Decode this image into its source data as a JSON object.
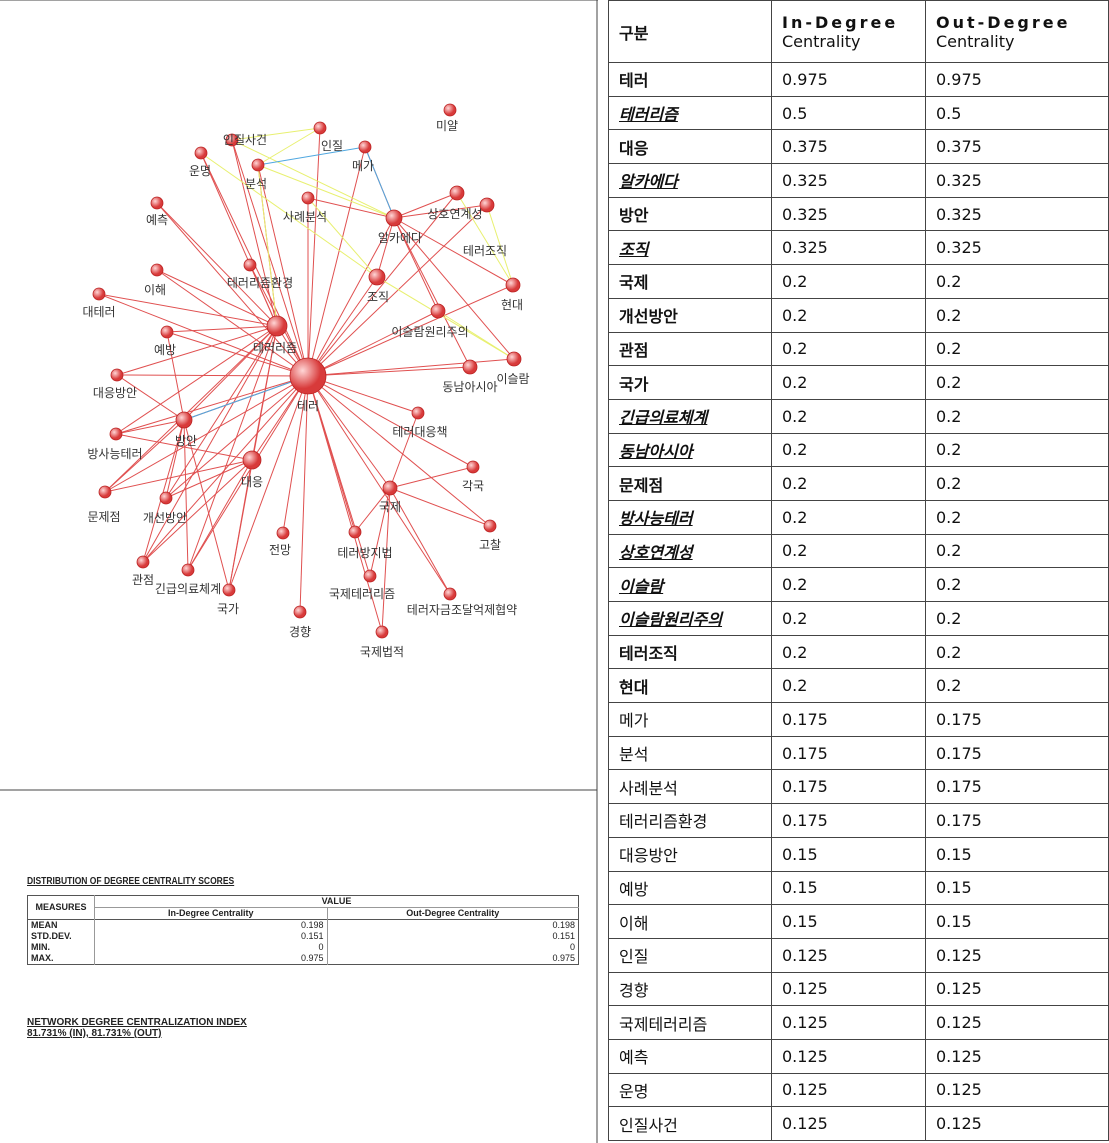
{
  "network": {
    "nodes": [
      "테러",
      "테러리즘",
      "미얄",
      "인질사건",
      "인질",
      "메가",
      "운명",
      "분석",
      "예측",
      "사례분석",
      "상호연계성",
      "알카에다",
      "테러조직",
      "현대",
      "이슬람원리주의",
      "이슬람",
      "동남아시아",
      "조직",
      "테러리즘환경",
      "이해",
      "대테러",
      "예방",
      "대응방안",
      "방안",
      "방사능테러",
      "대응",
      "테러대응책",
      "각국",
      "국제",
      "문제점",
      "개선방안",
      "고찰",
      "전망",
      "테러방지법",
      "관점",
      "긴급의료체계",
      "국가",
      "국제테러리즘",
      "테러자금조달억제협약",
      "경향",
      "국제법적"
    ]
  },
  "stats": {
    "title": "DISTRIBUTION OF DEGREE CENTRALITY SCORES",
    "measures_label": "MEASURES",
    "value_label": "VALUE",
    "columns": [
      "In-Degree Centrality",
      "Out-Degree Centrality"
    ],
    "rows": [
      {
        "name": "MEAN",
        "values": [
          0.198,
          0.198
        ]
      },
      {
        "name": "STD.DEV.",
        "values": [
          0.151,
          0.151
        ]
      },
      {
        "name": "MIN.",
        "values": [
          0,
          0
        ]
      },
      {
        "name": "MAX.",
        "values": [
          0.975,
          0.975
        ]
      }
    ],
    "index_title": "NETWORK DEGREE CENTRALIZATION INDEX",
    "index_value": "81.731% (IN), 81.731% (OUT)"
  },
  "table": {
    "header": [
      "구분",
      [
        "In-Degree",
        "Centrality"
      ],
      [
        "Out-Degree",
        "Centrality"
      ]
    ],
    "rows": [
      [
        "테러",
        0.975,
        0.975
      ],
      [
        "테러리즘",
        0.5,
        0.5
      ],
      [
        "대응",
        0.375,
        0.375
      ],
      [
        "알카에다",
        0.325,
        0.325
      ],
      [
        "방안",
        0.325,
        0.325
      ],
      [
        "조직",
        0.325,
        0.325
      ],
      [
        "국제",
        0.2,
        0.2
      ],
      [
        "개선방안",
        0.2,
        0.2
      ],
      [
        "관점",
        0.2,
        0.2
      ],
      [
        "국가",
        0.2,
        0.2
      ],
      [
        "긴급의료체계",
        0.2,
        0.2
      ],
      [
        "동남아시아",
        0.2,
        0.2
      ],
      [
        "문제점",
        0.2,
        0.2
      ],
      [
        "방사능테러",
        0.2,
        0.2
      ],
      [
        "상호연계성",
        0.2,
        0.2
      ],
      [
        "이슬람",
        0.2,
        0.2
      ],
      [
        "이슬람원리주의",
        0.2,
        0.2
      ],
      [
        "테러조직",
        0.2,
        0.2
      ],
      [
        "현대",
        0.2,
        0.2
      ],
      [
        "메가",
        0.175,
        0.175
      ],
      [
        "분석",
        0.175,
        0.175
      ],
      [
        "사례분석",
        0.175,
        0.175
      ],
      [
        "테러리즘환경",
        0.175,
        0.175
      ],
      [
        "대응방안",
        0.15,
        0.15
      ],
      [
        "예방",
        0.15,
        0.15
      ],
      [
        "이해",
        0.15,
        0.15
      ],
      [
        "인질",
        0.125,
        0.125
      ],
      [
        "경향",
        0.125,
        0.125
      ],
      [
        "국제테러리즘",
        0.125,
        0.125
      ],
      [
        "예측",
        0.125,
        0.125
      ],
      [
        "운명",
        0.125,
        0.125
      ],
      [
        "인질사건",
        0.125,
        0.125
      ]
    ],
    "emphasis": [
      "bold",
      "bold-italic-underline",
      "bold",
      "bold-italic-underline",
      "bold",
      "bold-italic-underline",
      "bold",
      "bold",
      "bold",
      "bold",
      "bold-italic-underline",
      "bold-italic-underline",
      "bold",
      "bold-italic-underline",
      "bold-italic-underline",
      "bold-italic-underline",
      "bold-italic-underline",
      "bold",
      "bold",
      "normal",
      "normal",
      "normal",
      "normal",
      "normal",
      "normal",
      "normal",
      "normal",
      "normal",
      "normal",
      "normal",
      "normal",
      "normal"
    ]
  }
}
